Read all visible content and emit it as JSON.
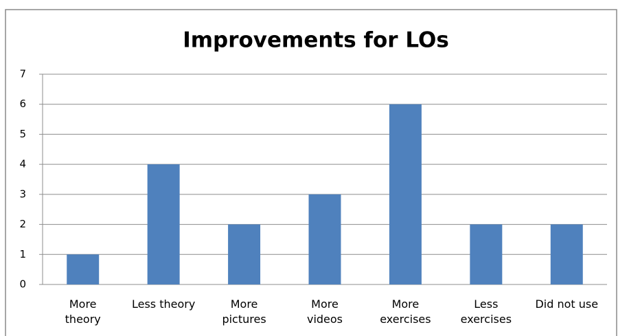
{
  "chart_data": {
    "type": "bar",
    "title": "Improvements for LOs",
    "categories": [
      "More theory",
      "Less theory",
      "More pictures",
      "More videos",
      "More exercises",
      "Less exercises",
      "Did not use"
    ],
    "values": [
      1,
      4,
      2,
      3,
      6,
      2,
      2
    ],
    "color": "#4f81bd",
    "ylim": [
      0,
      7
    ],
    "yticks": [
      0,
      1,
      2,
      3,
      4,
      5,
      6,
      7
    ],
    "grid": true
  }
}
